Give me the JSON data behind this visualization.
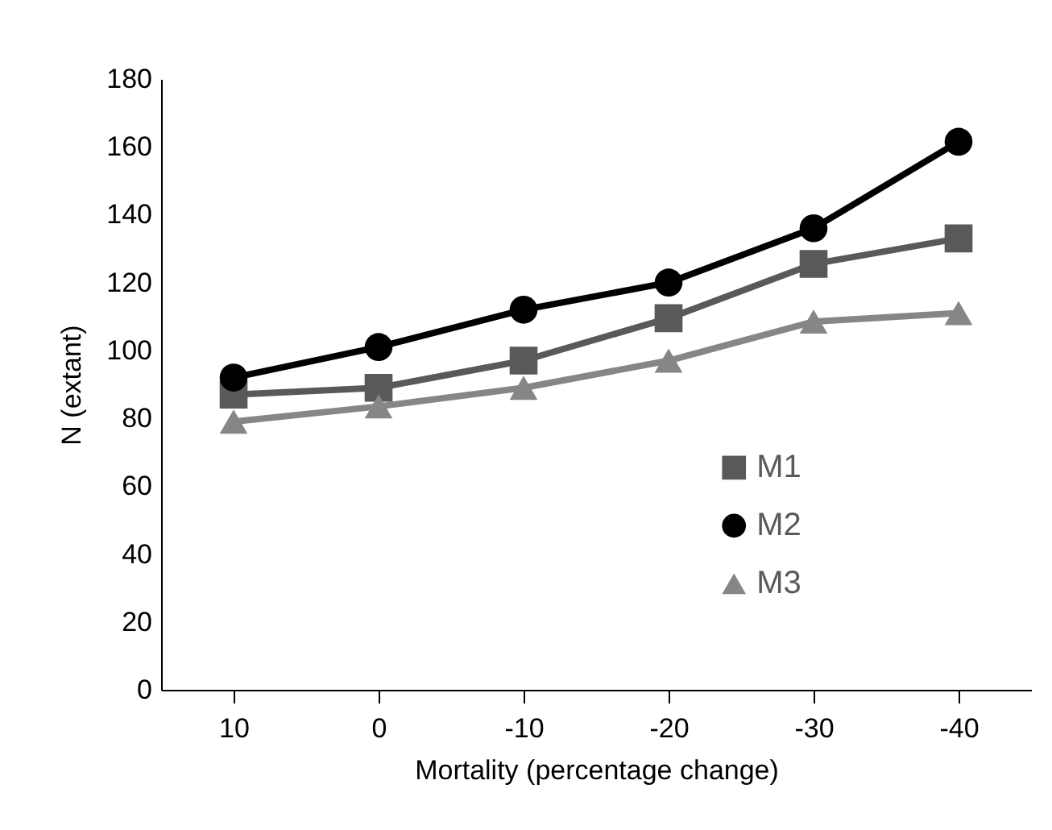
{
  "chart_data": {
    "type": "line",
    "xlabel": "Mortality (percentage change)",
    "ylabel": "N (extant)",
    "categories": [
      "10",
      "0",
      "-10",
      "-20",
      "-30",
      "-40"
    ],
    "series": [
      {
        "name": "M1",
        "color": "#595959",
        "marker": "square",
        "values": [
          87,
          89,
          97,
          109.5,
          125.5,
          133
        ]
      },
      {
        "name": "M2",
        "color": "#000000",
        "marker": "circle",
        "values": [
          92,
          101,
          112,
          120,
          136,
          161.5
        ]
      },
      {
        "name": "M3",
        "color": "#868686",
        "marker": "triangle",
        "values": [
          79,
          83.5,
          89,
          97,
          108.5,
          111
        ]
      }
    ],
    "ylim": [
      0,
      180
    ],
    "yticks": [
      0,
      20,
      40,
      60,
      80,
      100,
      120,
      140,
      160,
      180
    ],
    "grid": false,
    "legend": "bottom right"
  }
}
